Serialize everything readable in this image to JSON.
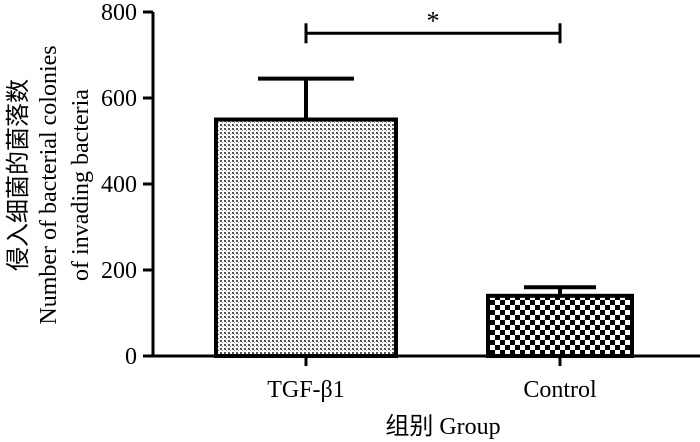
{
  "chart_data": {
    "type": "bar",
    "categories": [
      "TGF-β1",
      "Control"
    ],
    "values": [
      550,
      140
    ],
    "errors": [
      95,
      20
    ],
    "ylim": [
      0,
      800
    ],
    "yticks": [
      0,
      200,
      400,
      600,
      800
    ],
    "ylabel_cn": "侵入细菌的菌落数",
    "ylabel_line1": "Number of bacterial colonies",
    "ylabel_line2": "of invading bacteria",
    "xlabel": "组别 Group",
    "significance": {
      "between": [
        0,
        1
      ],
      "label": "*",
      "y": 790
    },
    "bar_patterns": [
      "fine-dots",
      "checkerboard"
    ],
    "grid": false,
    "legend": "none"
  }
}
